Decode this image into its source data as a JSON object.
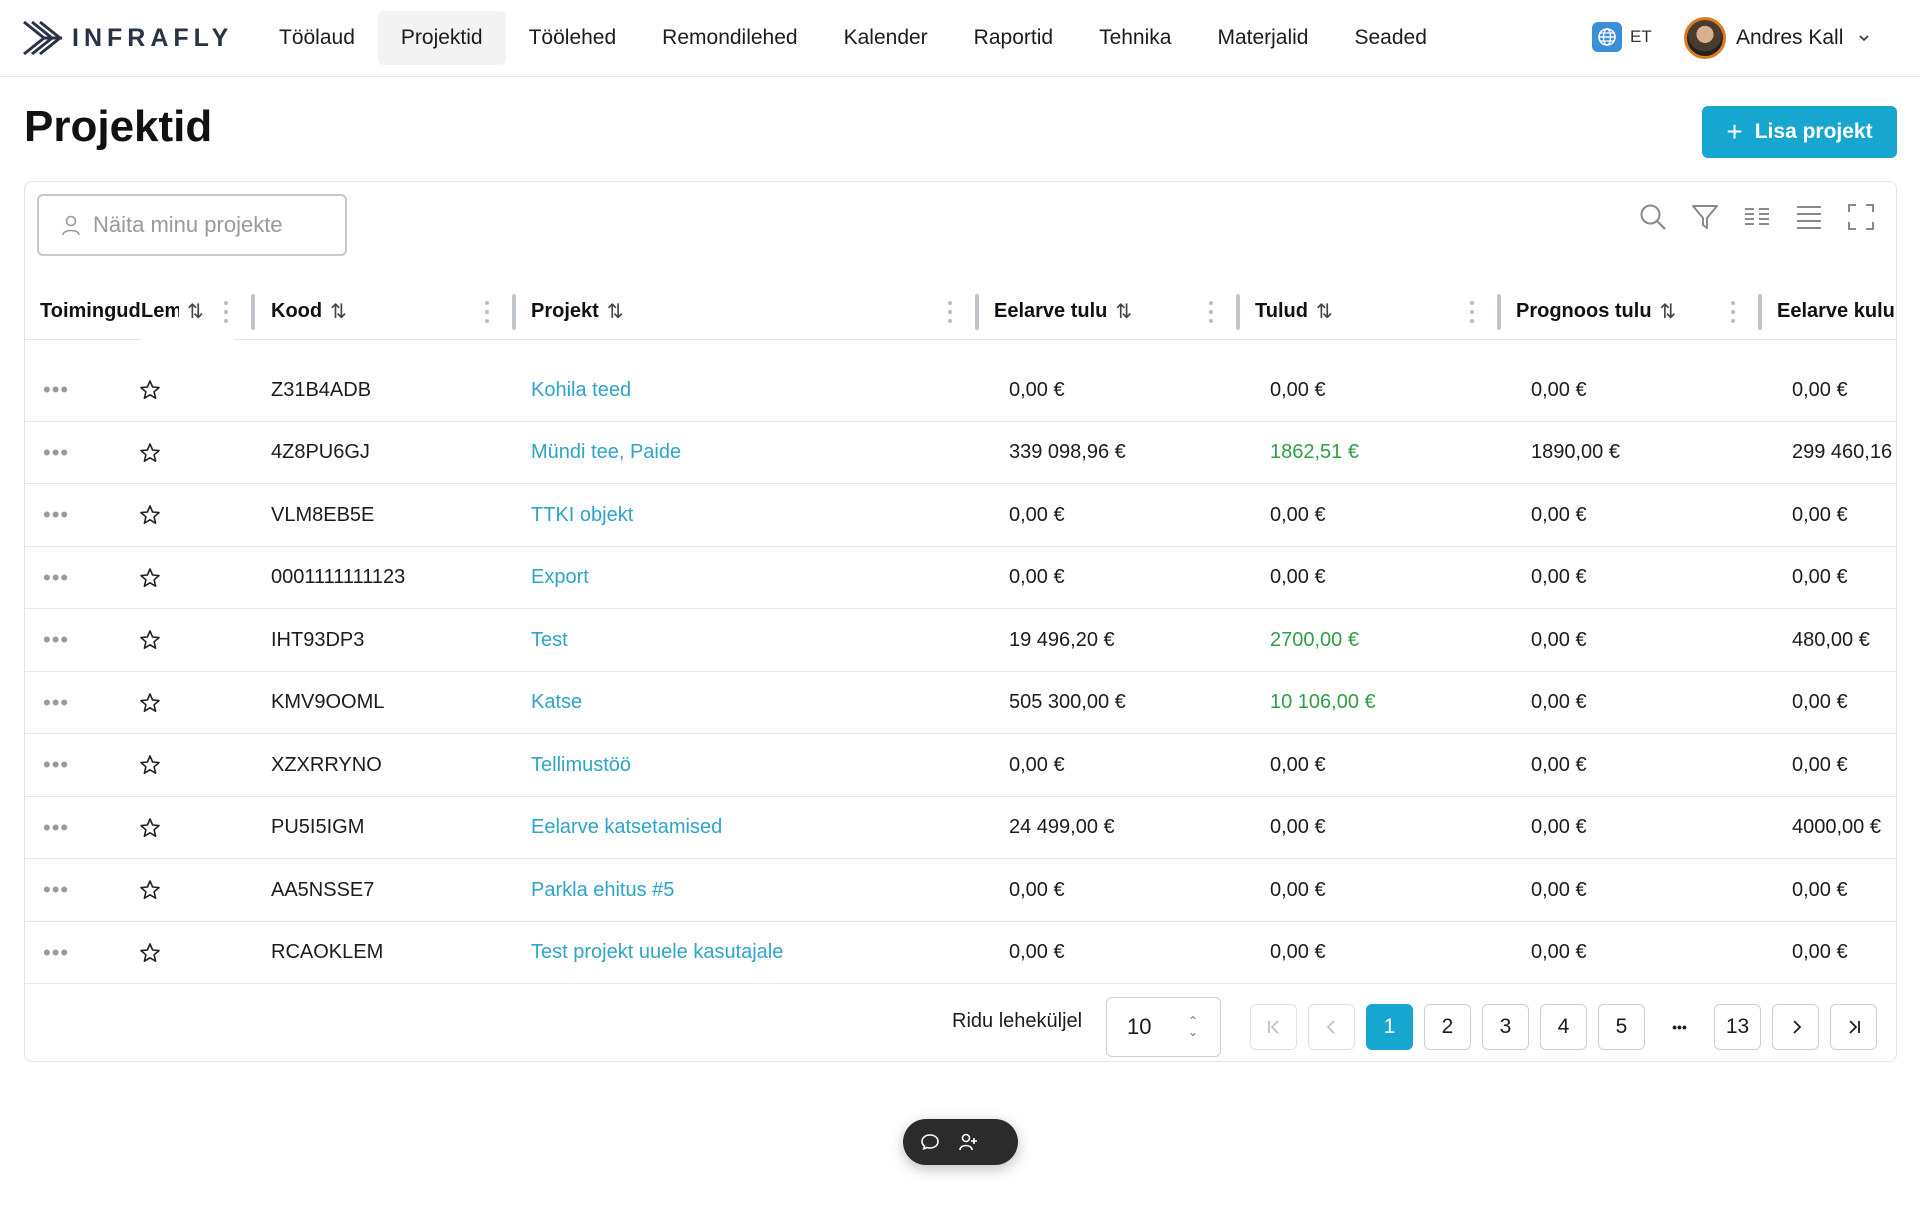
{
  "app": {
    "brand": "INFRAFLY"
  },
  "nav": {
    "items": [
      "Töölaud",
      "Projektid",
      "Töölehed",
      "Remondilehed",
      "Kalender",
      "Raportid",
      "Tehnika",
      "Materjalid",
      "Seaded"
    ],
    "active": "Projektid"
  },
  "lang": {
    "code": "ET"
  },
  "user": {
    "name": "Andres Kall"
  },
  "page": {
    "title": "Projektid",
    "add_label": "Lisa projekt"
  },
  "filter": {
    "my_projects_label": "Näita minu projekte"
  },
  "toolbar": {
    "icons": [
      "search-icon",
      "filter-icon",
      "columns-icon",
      "density-icon",
      "fullscreen-icon"
    ]
  },
  "table": {
    "headers": {
      "actions": "Toimingud",
      "fav": "Lemmik",
      "code": "Kood",
      "project": "Projekt",
      "budget_income": "Eelarve tulu",
      "income": "Tulud",
      "forecast_income": "Prognoos tulu",
      "budget_cost": "Eelarve kulu"
    },
    "rows": [
      {
        "code": "Z31B4ADB",
        "project": "Kohila teed",
        "budget_income": "0,00 €",
        "income": "0,00 €",
        "income_green": false,
        "forecast_income": "0,00 €",
        "budget_cost": "0,00 €"
      },
      {
        "code": "4Z8PU6GJ",
        "project": "Mündi tee, Paide",
        "budget_income": "339 098,96 €",
        "income": "1862,51 €",
        "income_green": true,
        "forecast_income": "1890,00 €",
        "budget_cost": "299 460,16"
      },
      {
        "code": "VLM8EB5E",
        "project": "TTKI objekt",
        "budget_income": "0,00 €",
        "income": "0,00 €",
        "income_green": false,
        "forecast_income": "0,00 €",
        "budget_cost": "0,00 €"
      },
      {
        "code": "0001111111123",
        "project": "Export",
        "budget_income": "0,00 €",
        "income": "0,00 €",
        "income_green": false,
        "forecast_income": "0,00 €",
        "budget_cost": "0,00 €"
      },
      {
        "code": "IHT93DP3",
        "project": "Test",
        "budget_income": "19 496,20 €",
        "income": "2700,00 €",
        "income_green": true,
        "forecast_income": "0,00 €",
        "budget_cost": "480,00 €"
      },
      {
        "code": "KMV9OOML",
        "project": "Katse",
        "budget_income": "505 300,00 €",
        "income": "10 106,00 €",
        "income_green": true,
        "forecast_income": "0,00 €",
        "budget_cost": "0,00 €"
      },
      {
        "code": "XZXRRYNO",
        "project": "Tellimustöö",
        "budget_income": "0,00 €",
        "income": "0,00 €",
        "income_green": false,
        "forecast_income": "0,00 €",
        "budget_cost": "0,00 €"
      },
      {
        "code": "PU5I5IGM",
        "project": "Eelarve katsetamised",
        "budget_income": "24 499,00 €",
        "income": "0,00 €",
        "income_green": false,
        "forecast_income": "0,00 €",
        "budget_cost": "4000,00 €"
      },
      {
        "code": "AA5NSSE7",
        "project": "Parkla ehitus #5",
        "budget_income": "0,00 €",
        "income": "0,00 €",
        "income_green": false,
        "forecast_income": "0,00 €",
        "budget_cost": "0,00 €"
      },
      {
        "code": "RCAOKLEM",
        "project": "Test projekt uuele kasutajale",
        "budget_income": "0,00 €",
        "income": "0,00 €",
        "income_green": false,
        "forecast_income": "0,00 €",
        "budget_cost": "0,00 €"
      }
    ]
  },
  "pagination": {
    "rows_per_page_label": "Ridu leheküljel",
    "rows_per_page": "10",
    "pages": [
      "1",
      "2",
      "3",
      "4",
      "5"
    ],
    "ellipsis": "•••",
    "last_page": "13",
    "current_page": "1"
  },
  "colors": {
    "accent": "#17a6cf",
    "link": "#2ea4c8",
    "positive": "#2f9e44"
  }
}
